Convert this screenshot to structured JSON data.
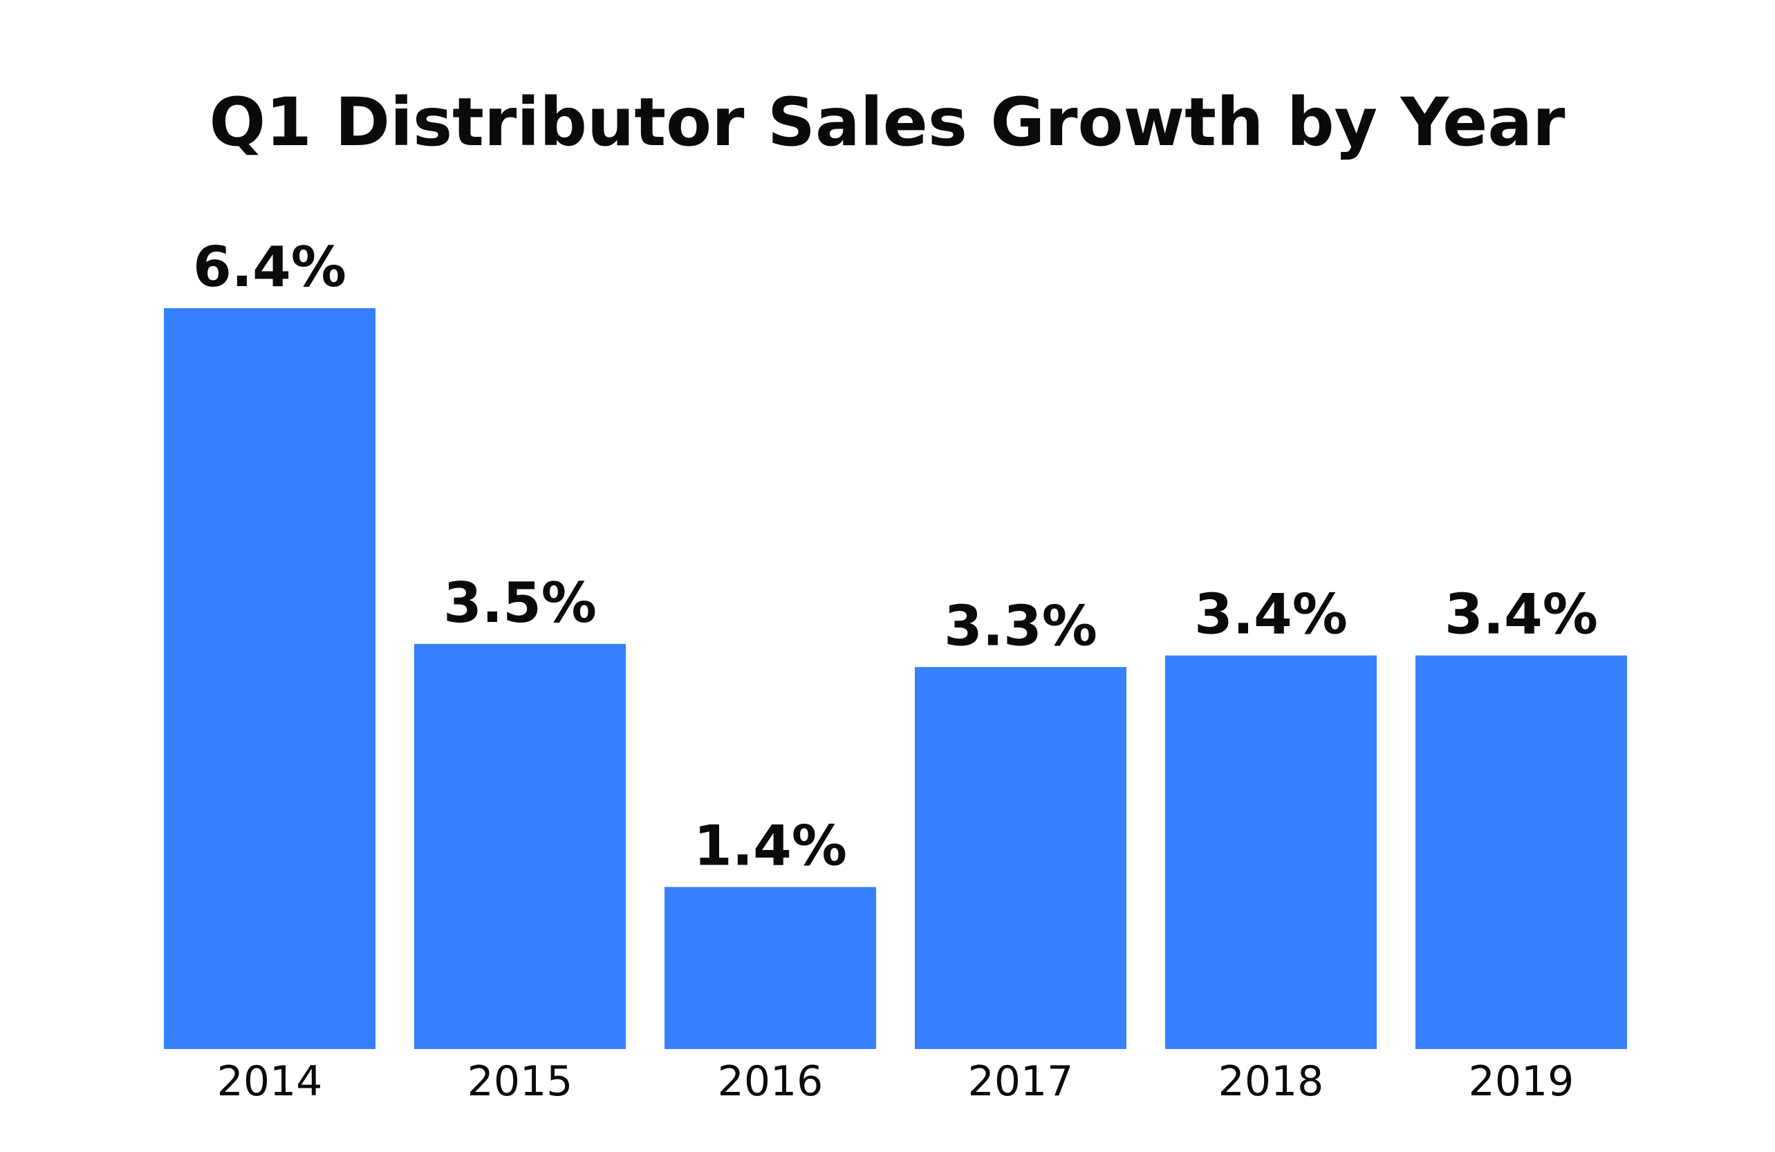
{
  "chart_data": {
    "type": "bar",
    "title": "Q1 Distributor Sales Growth by Year",
    "xlabel": "",
    "ylabel": "",
    "categories": [
      "2014",
      "2015",
      "2016",
      "2017",
      "2018",
      "2019"
    ],
    "values": [
      6.4,
      3.5,
      1.4,
      3.3,
      3.4,
      3.4
    ],
    "data_labels": [
      "6.4%",
      "3.5%",
      "1.4%",
      "3.3%",
      "3.4%",
      "3.4%"
    ],
    "ylim": [
      0,
      6.4
    ],
    "grid": false,
    "legend": "none",
    "bar_color": "#3680FF",
    "text_color": "#0a0a0a"
  }
}
